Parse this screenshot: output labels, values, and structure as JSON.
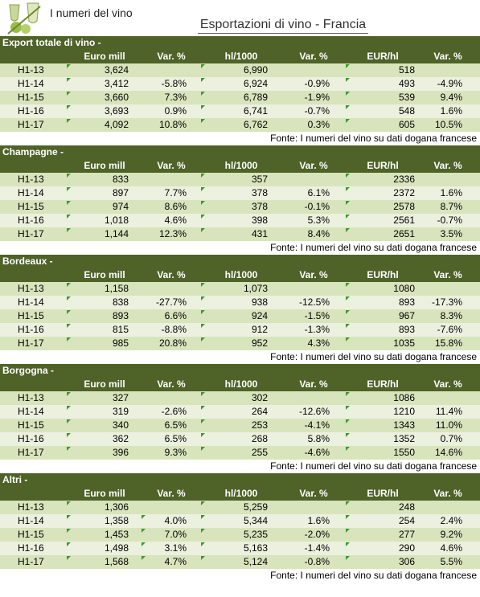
{
  "header": {
    "brand": "I numeri del vino",
    "title": "Esportazioni di vino - Francia"
  },
  "sections": [
    {
      "title": "Export totale di vino -",
      "columns": [
        "Euro mill",
        "Var. %",
        "hl/1000",
        "Var. %",
        "EUR/hl",
        "Var. %"
      ],
      "rows": [
        [
          "H1-13",
          "3,624",
          null,
          "6,990",
          null,
          "518",
          null
        ],
        [
          "H1-14",
          "3,412",
          "-5.8%",
          "6,924",
          "-0.9%",
          "493",
          "-4.9%"
        ],
        [
          "H1-15",
          "3,660",
          "7.3%",
          "6,789",
          "-1.9%",
          "539",
          "9.4%"
        ],
        [
          "H1-16",
          "3,693",
          "0.9%",
          "6,741",
          "-0.7%",
          "548",
          "1.6%"
        ],
        [
          "H1-17",
          "4,092",
          "10.8%",
          "6,762",
          "0.3%",
          "605",
          "10.5%"
        ]
      ],
      "source": "Fonte: I numeri del vino su dati dogana francese"
    },
    {
      "title": "Champagne -",
      "columns": [
        "Euro mill",
        "Var. %",
        "hl/1000",
        "Var. %",
        "EUR/hl",
        "Var. %"
      ],
      "rows": [
        [
          "H1-13",
          "833",
          null,
          "357",
          null,
          "2336",
          null
        ],
        [
          "H1-14",
          "897",
          "7.7%",
          "378",
          "6.1%",
          "2372",
          "1.6%"
        ],
        [
          "H1-15",
          "974",
          "8.6%",
          "378",
          "-0.1%",
          "2578",
          "8.7%"
        ],
        [
          "H1-16",
          "1,018",
          "4.6%",
          "398",
          "5.3%",
          "2561",
          "-0.7%"
        ],
        [
          "H1-17",
          "1,144",
          "12.3%",
          "431",
          "8.4%",
          "2651",
          "3.5%"
        ]
      ],
      "source": "Fonte: I numeri del vino su dati dogana francese"
    },
    {
      "title": "Bordeaux -",
      "columns": [
        "Euro mill",
        "Var. %",
        "hl/1000",
        "Var. %",
        "EUR/hl",
        "Var. %"
      ],
      "rows": [
        [
          "H1-13",
          "1,158",
          null,
          "1,073",
          null,
          "1080",
          null
        ],
        [
          "H1-14",
          "838",
          "-27.7%",
          "938",
          "-12.5%",
          "893",
          "-17.3%"
        ],
        [
          "H1-15",
          "893",
          "6.6%",
          "924",
          "-1.5%",
          "967",
          "8.3%"
        ],
        [
          "H1-16",
          "815",
          "-8.8%",
          "912",
          "-1.3%",
          "893",
          "-7.6%"
        ],
        [
          "H1-17",
          "985",
          "20.8%",
          "952",
          "4.3%",
          "1035",
          "15.8%"
        ]
      ],
      "source": "Fonte: I numeri del vino su dati dogana francese"
    },
    {
      "title": "Borgogna -",
      "columns": [
        "Euro mill",
        "Var. %",
        "hl/1000",
        "Var. %",
        "EUR/hl",
        "Var. %"
      ],
      "rows": [
        [
          "H1-13",
          "327",
          null,
          "302",
          null,
          "1086",
          null
        ],
        [
          "H1-14",
          "319",
          "-2.6%",
          "264",
          "-12.6%",
          "1210",
          "11.4%"
        ],
        [
          "H1-15",
          "340",
          "6.5%",
          "253",
          "-4.1%",
          "1343",
          "11.0%"
        ],
        [
          "H1-16",
          "362",
          "6.5%",
          "268",
          "5.8%",
          "1352",
          "0.7%"
        ],
        [
          "H1-17",
          "396",
          "9.3%",
          "255",
          "-4.6%",
          "1550",
          "14.6%"
        ]
      ],
      "source": "Fonte: I numeri del vino su dati dogana francese"
    },
    {
      "title": "Altri -",
      "columns": [
        "Euro mill",
        "Var. %",
        "hl/1000",
        "Var. %",
        "EUR/hl",
        "Var. %"
      ],
      "rows": [
        [
          "H1-13",
          "1,306",
          null,
          "5,259",
          null,
          "248",
          null
        ],
        [
          "H1-14",
          "1,358",
          "4.0%",
          "5,344",
          "1.6%",
          "254",
          "2.4%"
        ],
        [
          "H1-15",
          "1,453",
          "7.0%",
          "5,235",
          "-2.0%",
          "277",
          "9.2%"
        ],
        [
          "H1-16",
          "1,498",
          "3.1%",
          "5,163",
          "-1.4%",
          "290",
          "4.6%"
        ],
        [
          "H1-17",
          "1,568",
          "4.7%",
          "5,124",
          "-0.8%",
          "306",
          "5.5%"
        ]
      ],
      "source": "Fonte: I numeri del vino su dati dogana francese"
    }
  ]
}
